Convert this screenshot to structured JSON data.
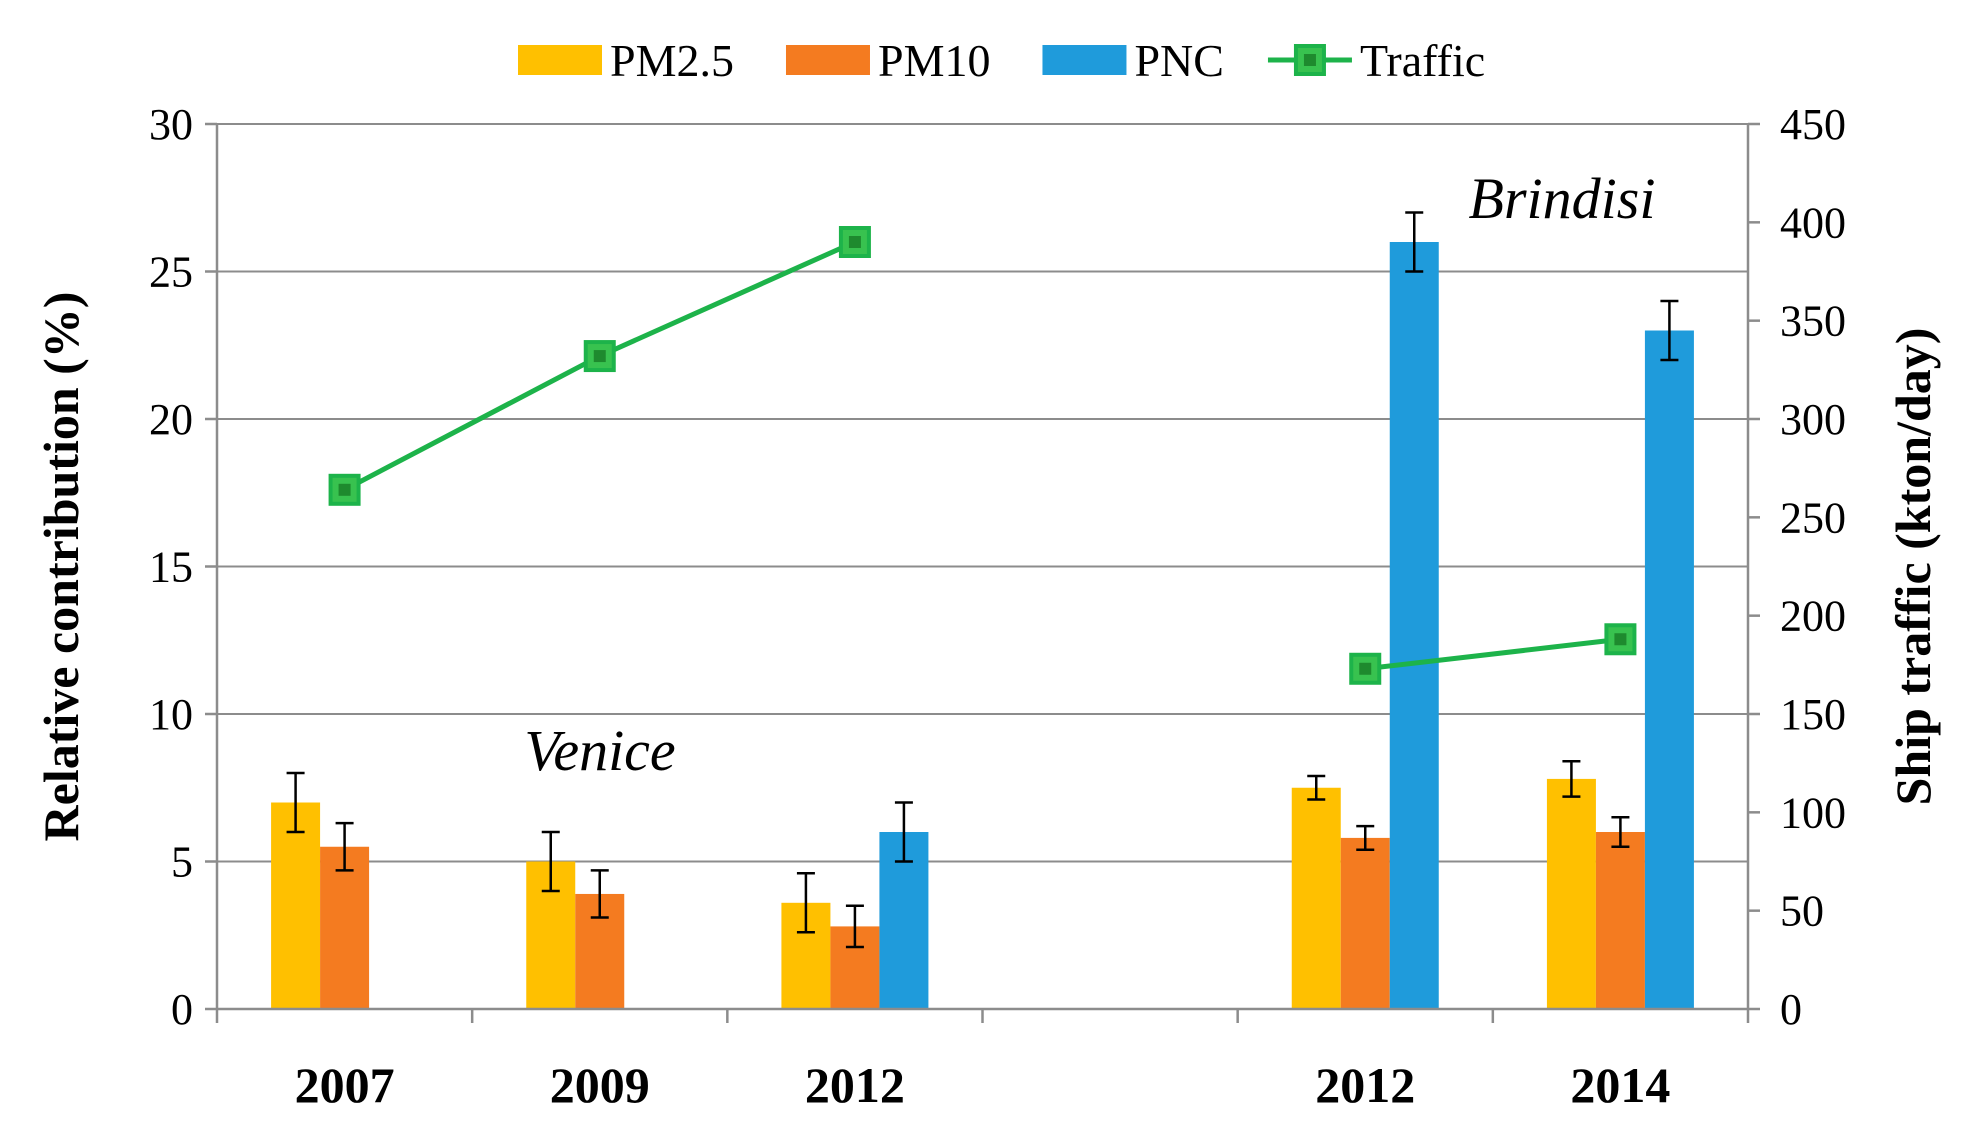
{
  "chart_data": {
    "type": "bar",
    "categories": [
      "2007",
      "2009",
      "2012",
      "2012",
      "2014"
    ],
    "series": [
      {
        "name": "PM2.5",
        "color": "#FFC000",
        "values": [
          7.0,
          5.0,
          3.6,
          7.5,
          7.8
        ],
        "errors": [
          1.0,
          1.0,
          1.0,
          0.4,
          0.6
        ]
      },
      {
        "name": "PM10",
        "color": "#F47B20",
        "values": [
          5.5,
          3.9,
          2.8,
          5.8,
          6.0
        ],
        "errors": [
          0.8,
          0.8,
          0.7,
          0.4,
          0.5
        ]
      },
      {
        "name": "PNC",
        "color": "#1F9BDB",
        "values": [
          null,
          null,
          6.0,
          26.0,
          23.0
        ],
        "errors": [
          null,
          null,
          1.0,
          1.0,
          1.0
        ]
      }
    ],
    "line_series": {
      "name": "Traffic",
      "color": "#1DB34A",
      "marker_fill": "#2E9E3A",
      "axis": "right",
      "values": [
        264,
        332,
        390,
        173,
        188
      ],
      "segments": [
        [
          0,
          1,
          2
        ],
        [
          3,
          4
        ]
      ]
    },
    "ylabel": "Relative contribution (%)",
    "ylabel_right": "Ship traffic (kton/day)",
    "ylim": [
      0,
      30
    ],
    "ylim_right": [
      0,
      450
    ],
    "yticks": [
      "0",
      "5",
      "10",
      "15",
      "20",
      "25",
      "30"
    ],
    "yticks_right": [
      "0",
      "50",
      "100",
      "150",
      "200",
      "250",
      "300",
      "350",
      "400",
      "450"
    ],
    "grid": true,
    "legend_position": "top-center",
    "annotations": [
      {
        "text": "Venice",
        "near": "2009 group"
      },
      {
        "text": "Brindisi",
        "near": "2012-2014 groups, upper right"
      }
    ]
  },
  "legend": {
    "items": [
      "PM2.5",
      "PM10",
      "PNC",
      "Traffic"
    ]
  }
}
